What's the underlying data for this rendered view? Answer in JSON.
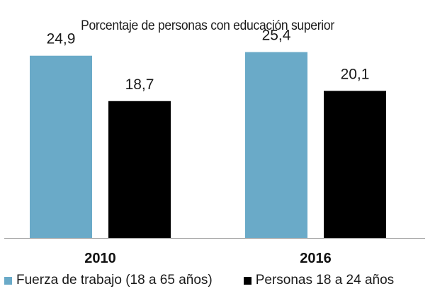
{
  "chart_data": {
    "type": "bar",
    "title": "Porcentaje de personas con educación superior",
    "categories": [
      "2010",
      "2016"
    ],
    "series": [
      {
        "name": "Fuerza de trabajo (18 a 65 años)",
        "values": [
          24.9,
          25.4
        ],
        "color": "#6aaac8"
      },
      {
        "name": "Personas 18 a 24 años",
        "values": [
          18.7,
          20.1
        ],
        "color": "#000000"
      }
    ],
    "data_labels": [
      [
        "24,9",
        "25,4"
      ],
      [
        "18,7",
        "20,1"
      ]
    ],
    "ylim": [
      0,
      30
    ],
    "grid": false,
    "legend_position": "bottom"
  }
}
